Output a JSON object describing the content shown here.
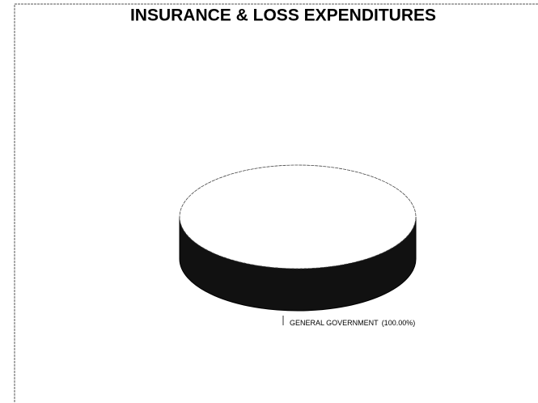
{
  "chart_data": {
    "type": "pie",
    "title": "INSURANCE & LOSS EXPENDITURES",
    "categories": [
      "GENERAL GOVERNMENT"
    ],
    "values": [
      100
    ],
    "value_labels": [
      "(100.00%)"
    ],
    "color": "#ffffff"
  }
}
